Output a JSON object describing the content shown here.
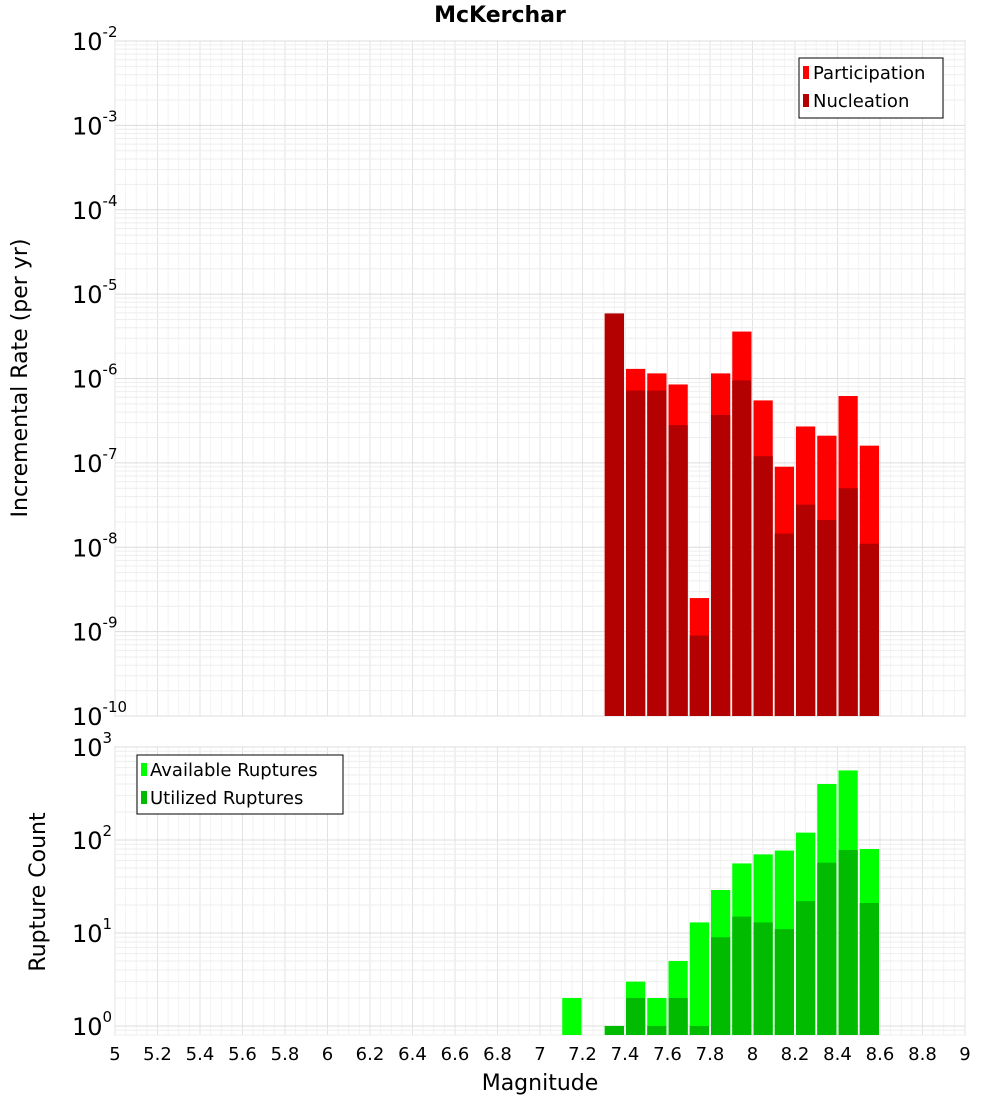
{
  "chart_data": [
    {
      "type": "bar",
      "title": "McKerchar",
      "xlabel": "",
      "ylabel": "Incremental Rate (per yr)",
      "y_scale": "log",
      "xlim": [
        5,
        9
      ],
      "ylim": [
        1e-10,
        0.01
      ],
      "y_ticks": [
        {
          "base": "10",
          "exp": "-2"
        },
        {
          "base": "10",
          "exp": "-3"
        },
        {
          "base": "10",
          "exp": "-4"
        },
        {
          "base": "10",
          "exp": "-5"
        },
        {
          "base": "10",
          "exp": "-6"
        },
        {
          "base": "10",
          "exp": "-7"
        },
        {
          "base": "10",
          "exp": "-8"
        },
        {
          "base": "10",
          "exp": "-9"
        },
        {
          "base": "10",
          "exp": "-10"
        }
      ],
      "grid": true,
      "legend_position": "top-right",
      "x": [
        7.35,
        7.45,
        7.55,
        7.65,
        7.75,
        7.85,
        7.95,
        8.05,
        8.15,
        8.25,
        8.35,
        8.45,
        8.55
      ],
      "series": [
        {
          "name": "Participation",
          "color": "#ff0000",
          "values": [
            5.9e-06,
            1.3e-06,
            1.15e-06,
            8.5e-07,
            2.5e-09,
            1.15e-06,
            3.6e-06,
            5.5e-07,
            9e-08,
            2.7e-07,
            2.1e-07,
            6.2e-07,
            1.6e-07
          ]
        },
        {
          "name": "Nucleation",
          "color": "#b30000",
          "values": [
            5.9e-06,
            7.2e-07,
            7.2e-07,
            2.8e-07,
            9e-10,
            3.7e-07,
            9.5e-07,
            1.2e-07,
            1.45e-08,
            3.2e-08,
            2.1e-08,
            5e-08,
            1.1e-08
          ]
        }
      ]
    },
    {
      "type": "bar",
      "title": "",
      "xlabel": "Magnitude",
      "ylabel": "Rupture Count",
      "y_scale": "log",
      "xlim": [
        5,
        9
      ],
      "ylim": [
        0.8,
        1000
      ],
      "y_ticks": [
        {
          "base": "10",
          "exp": "3"
        },
        {
          "base": "10",
          "exp": "2"
        },
        {
          "base": "10",
          "exp": "1"
        },
        {
          "base": "10",
          "exp": "0"
        }
      ],
      "x_ticks": [
        "5",
        "5.2",
        "5.4",
        "5.6",
        "5.8",
        "6",
        "6.2",
        "6.4",
        "6.6",
        "6.8",
        "7",
        "7.2",
        "7.4",
        "7.6",
        "7.8",
        "8",
        "8.2",
        "8.4",
        "8.6",
        "8.8",
        "9"
      ],
      "grid": true,
      "legend_position": "top-left",
      "x": [
        7.15,
        7.35,
        7.45,
        7.55,
        7.65,
        7.75,
        7.85,
        7.95,
        8.05,
        8.15,
        8.25,
        8.35,
        8.45,
        8.55
      ],
      "series": [
        {
          "name": "Available Ruptures",
          "color": "#00ff00",
          "values": [
            2,
            1,
            3,
            2,
            5,
            13,
            29,
            56,
            70,
            77,
            120,
            400,
            560,
            80
          ]
        },
        {
          "name": "Utilized Ruptures",
          "color": "#00bb00",
          "values": [
            0,
            1,
            2,
            1,
            2,
            1,
            9,
            15,
            13,
            11,
            22,
            57,
            78,
            21
          ]
        }
      ]
    }
  ]
}
